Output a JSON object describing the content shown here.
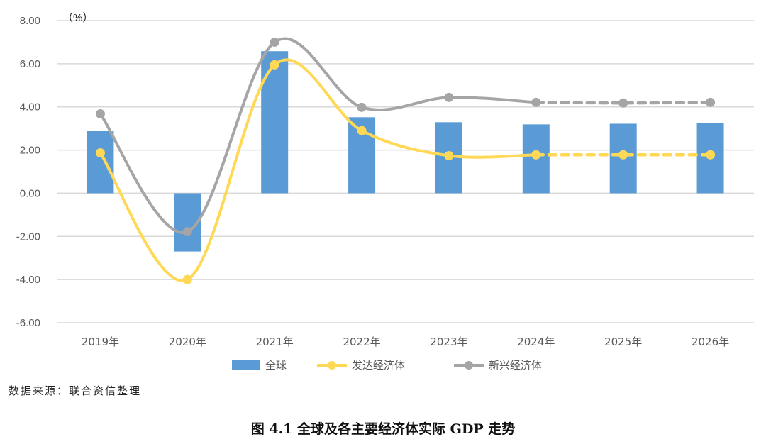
{
  "chart_data": {
    "type": "bar",
    "title": "",
    "unit_label": "（%）",
    "xlabel": "",
    "ylabel": "",
    "ylim": [
      -6,
      8
    ],
    "yticks": [
      "8.00",
      "6.00",
      "4.00",
      "2.00",
      "0.00",
      "-2.00",
      "-4.00",
      "-6.00"
    ],
    "yticks_values": [
      8,
      6,
      4,
      2,
      0,
      -2,
      -4,
      -6
    ],
    "grid": true,
    "legend_placement": "bottom",
    "categories": [
      "2019年",
      "2020年",
      "2021年",
      "2022年",
      "2023年",
      "2024年",
      "2025年",
      "2026年"
    ],
    "series": [
      {
        "name": "全球",
        "type": "bar",
        "color": "#5B9BD5",
        "values": [
          2.89,
          -2.7,
          6.58,
          3.52,
          3.29,
          3.19,
          3.22,
          3.26
        ]
      },
      {
        "name": "发达经济体",
        "type": "line",
        "smooth": true,
        "color": "#FFD956",
        "dashed_from": "2024年",
        "values": [
          1.87,
          -4.0,
          5.95,
          2.9,
          1.74,
          1.78,
          1.78,
          1.78
        ]
      },
      {
        "name": "新兴经济体",
        "type": "line",
        "smooth": true,
        "color": "#A5A5A5",
        "dashed_from": "2024年",
        "values": [
          3.68,
          -1.78,
          7.0,
          3.98,
          4.44,
          4.21,
          4.18,
          4.21
        ]
      }
    ]
  },
  "source": "数据来源：联合资信整理",
  "caption": "图  4.1 全球及各主要经济体实际 GDP 走势"
}
